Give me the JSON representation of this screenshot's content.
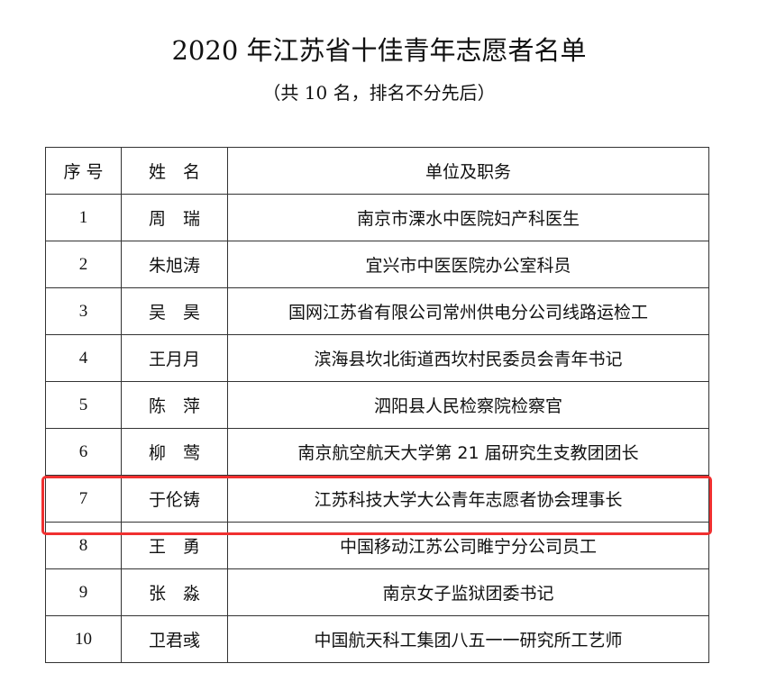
{
  "document": {
    "title": "2020 年江苏省十佳青年志愿者名单",
    "subtitle": "（共 10 名，排名不分先后）"
  },
  "table": {
    "headers": [
      "序 号",
      "姓　名",
      "单位及职务"
    ],
    "rows": [
      [
        "1",
        "周　瑞",
        "南京市溧水中医院妇产科医生"
      ],
      [
        "2",
        "朱旭涛",
        "宜兴市中医医院办公室科员"
      ],
      [
        "3",
        "吴　昊",
        "国网江苏省有限公司常州供电分公司线路运检工"
      ],
      [
        "4",
        "王月月",
        "滨海县坎北街道西坎村民委员会青年书记"
      ],
      [
        "5",
        "陈　萍",
        "泗阳县人民检察院检察官"
      ],
      [
        "6",
        "柳　莺",
        "南京航空航天大学第 21 届研究生支教团团长"
      ],
      [
        "7",
        "于伦铸",
        "江苏科技大学大公青年志愿者协会理事长"
      ],
      [
        "8",
        "王　勇",
        "中国移动江苏公司睢宁分公司员工"
      ],
      [
        "9",
        "张　淼",
        "南京女子监狱团委书记"
      ],
      [
        "10",
        "卫君彧",
        "中国航天科工集团八五一一研究所工艺师"
      ]
    ],
    "highlighted_row": "7",
    "highlight_color": "#f03030"
  }
}
